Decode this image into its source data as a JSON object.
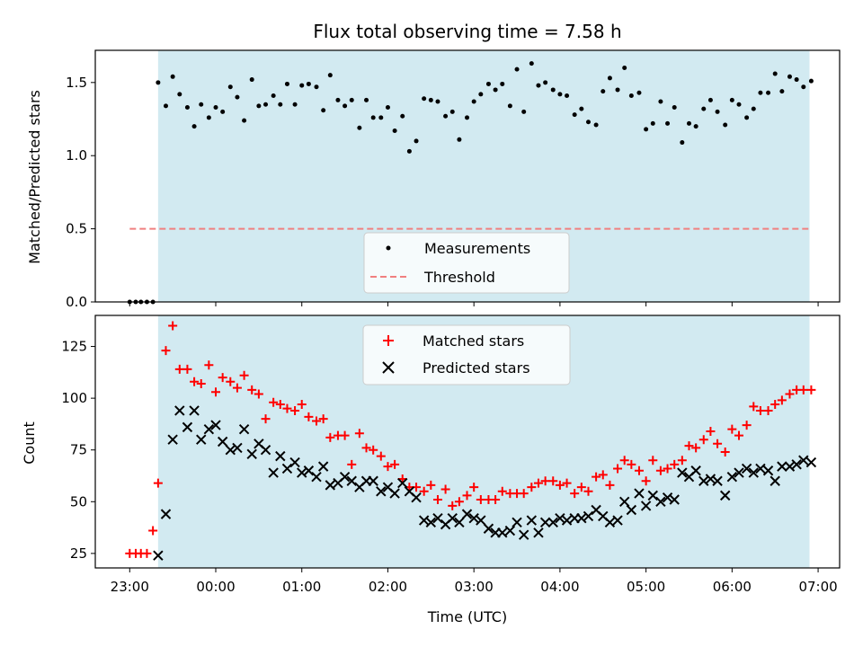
{
  "chart_data": {
    "title": "Flux total observing time = 7.58 h",
    "xlabel": "Time (UTC)",
    "x_ticks": [
      "23:00",
      "00:00",
      "01:00",
      "02:00",
      "03:00",
      "04:00",
      "05:00",
      "06:00",
      "07:00"
    ],
    "observing_window": {
      "start_h": 23.33,
      "end_h": 30.9,
      "color": "#add8e6"
    },
    "panels": [
      {
        "type": "scatter",
        "ylabel": "Matched/Predicted stars",
        "ylim": [
          0,
          1.72
        ],
        "yticks": [
          "0.0",
          "0.5",
          "1.0",
          "1.5"
        ],
        "threshold": 0.5,
        "legend": {
          "measurements": "Measurements",
          "threshold": "Threshold",
          "placement": "lower-center"
        },
        "series": [
          {
            "name": "Measurements",
            "color": "#000000",
            "x": [
              23.0,
              23.07,
              23.13,
              23.2,
              23.27,
              23.33,
              23.42,
              23.5,
              23.58,
              23.67,
              23.75,
              23.83,
              23.92,
              24.0,
              24.08,
              24.17,
              24.25,
              24.33,
              24.42,
              24.5,
              24.58,
              24.67,
              24.75,
              24.83,
              24.92,
              25.0,
              25.08,
              25.17,
              25.25,
              25.33,
              25.42,
              25.5,
              25.58,
              25.67,
              25.75,
              25.83,
              25.92,
              26.0,
              26.08,
              26.17,
              26.25,
              26.33,
              26.42,
              26.5,
              26.58,
              26.67,
              26.75,
              26.83,
              26.92,
              27.0,
              27.08,
              27.17,
              27.25,
              27.33,
              27.42,
              27.5,
              27.58,
              27.67,
              27.75,
              27.83,
              27.92,
              28.0,
              28.08,
              28.17,
              28.25,
              28.33,
              28.42,
              28.5,
              28.58,
              28.67,
              28.75,
              28.83,
              28.92,
              29.0,
              29.08,
              29.17,
              29.25,
              29.33,
              29.42,
              29.5,
              29.58,
              29.67,
              29.75,
              29.83,
              29.92,
              30.0,
              30.08,
              30.17,
              30.25,
              30.33,
              30.42,
              30.5,
              30.58,
              30.67,
              30.75,
              30.83,
              30.92
            ],
            "y": [
              0,
              0,
              0,
              0,
              0,
              1.5,
              1.34,
              1.54,
              1.42,
              1.33,
              1.2,
              1.35,
              1.26,
              1.33,
              1.3,
              1.47,
              1.4,
              1.24,
              1.52,
              1.34,
              1.35,
              1.41,
              1.35,
              1.49,
              1.35,
              1.48,
              1.49,
              1.47,
              1.31,
              1.55,
              1.38,
              1.34,
              1.38,
              1.19,
              1.38,
              1.26,
              1.26,
              1.33,
              1.17,
              1.27,
              1.03,
              1.1,
              1.39,
              1.38,
              1.37,
              1.27,
              1.3,
              1.11,
              1.26,
              1.37,
              1.42,
              1.49,
              1.45,
              1.49,
              1.34,
              1.59,
              1.3,
              1.63,
              1.48,
              1.5,
              1.45,
              1.42,
              1.41,
              1.28,
              1.32,
              1.23,
              1.21,
              1.44,
              1.53,
              1.45,
              1.6,
              1.41,
              1.43,
              1.18,
              1.22,
              1.37,
              1.22,
              1.33,
              1.09,
              1.22,
              1.2,
              1.32,
              1.38,
              1.3,
              1.21,
              1.38,
              1.35,
              1.26,
              1.32,
              1.43,
              1.43,
              1.56,
              1.44,
              1.54,
              1.52,
              1.47,
              1.51
            ]
          }
        ]
      },
      {
        "type": "scatter",
        "ylabel": "Count",
        "ylim": [
          18,
          140
        ],
        "yticks": [
          "25",
          "50",
          "75",
          "100",
          "125"
        ],
        "legend": {
          "matched": "Matched stars",
          "predicted": "Predicted stars",
          "placement": "upper-center"
        },
        "series": [
          {
            "name": "Matched stars",
            "color": "#ff0000",
            "x": [
              23.0,
              23.07,
              23.13,
              23.2,
              23.27,
              23.33,
              23.42,
              23.5,
              23.58,
              23.67,
              23.75,
              23.83,
              23.92,
              24.0,
              24.08,
              24.17,
              24.25,
              24.33,
              24.42,
              24.5,
              24.58,
              24.67,
              24.75,
              24.83,
              24.92,
              25.0,
              25.08,
              25.17,
              25.25,
              25.33,
              25.42,
              25.5,
              25.58,
              25.67,
              25.75,
              25.83,
              25.92,
              26.0,
              26.08,
              26.17,
              26.25,
              26.33,
              26.42,
              26.5,
              26.58,
              26.67,
              26.75,
              26.83,
              26.92,
              27.0,
              27.08,
              27.17,
              27.25,
              27.33,
              27.42,
              27.5,
              27.58,
              27.67,
              27.75,
              27.83,
              27.92,
              28.0,
              28.08,
              28.17,
              28.25,
              28.33,
              28.42,
              28.5,
              28.58,
              28.67,
              28.75,
              28.83,
              28.92,
              29.0,
              29.08,
              29.17,
              29.25,
              29.33,
              29.42,
              29.5,
              29.58,
              29.67,
              29.75,
              29.83,
              29.92,
              30.0,
              30.08,
              30.17,
              30.25,
              30.33,
              30.42,
              30.5,
              30.58,
              30.67,
              30.75,
              30.83,
              30.92
            ],
            "y": [
              25,
              25,
              25,
              25,
              36,
              59,
              123,
              135,
              114,
              114,
              108,
              107,
              116,
              103,
              110,
              108,
              105,
              111,
              104,
              102,
              90,
              98,
              97,
              95,
              94,
              97,
              91,
              89,
              90,
              81,
              82,
              82,
              68,
              83,
              76,
              75,
              72,
              67,
              68,
              61,
              57,
              57,
              55,
              58,
              51,
              56,
              48,
              50,
              53,
              57,
              51,
              51,
              51,
              55,
              54,
              54,
              54,
              57,
              59,
              60,
              60,
              58,
              59,
              54,
              57,
              55,
              62,
              63,
              58,
              66,
              70,
              68,
              65,
              60,
              70,
              65,
              66,
              68,
              70,
              77,
              76,
              80,
              84,
              78,
              74,
              85,
              82,
              87,
              96,
              94,
              94,
              97,
              99,
              102,
              104,
              104,
              104
            ]
          },
          {
            "name": "Predicted stars",
            "color": "#000000",
            "x": [
              23.33,
              23.42,
              23.5,
              23.58,
              23.67,
              23.75,
              23.83,
              23.92,
              24.0,
              24.08,
              24.17,
              24.25,
              24.33,
              24.42,
              24.5,
              24.58,
              24.67,
              24.75,
              24.83,
              24.92,
              25.0,
              25.08,
              25.17,
              25.25,
              25.33,
              25.42,
              25.5,
              25.58,
              25.67,
              25.75,
              25.83,
              25.92,
              26.0,
              26.08,
              26.17,
              26.25,
              26.33,
              26.42,
              26.5,
              26.58,
              26.67,
              26.75,
              26.83,
              26.92,
              27.0,
              27.08,
              27.17,
              27.25,
              27.33,
              27.42,
              27.5,
              27.58,
              27.67,
              27.75,
              27.83,
              27.92,
              28.0,
              28.08,
              28.17,
              28.25,
              28.33,
              28.42,
              28.5,
              28.58,
              28.67,
              28.75,
              28.83,
              28.92,
              29.0,
              29.08,
              29.17,
              29.25,
              29.33,
              29.42,
              29.5,
              29.58,
              29.67,
              29.75,
              29.83,
              29.92,
              30.0,
              30.08,
              30.17,
              30.25,
              30.33,
              30.42,
              30.5,
              30.58,
              30.67,
              30.75,
              30.83,
              30.92
            ],
            "y": [
              24,
              44,
              80,
              94,
              86,
              94,
              80,
              85,
              87,
              79,
              75,
              76,
              85,
              73,
              78,
              75,
              64,
              72,
              66,
              69,
              64,
              65,
              62,
              67,
              58,
              59,
              62,
              60,
              57,
              60,
              60,
              55,
              57,
              54,
              59,
              55,
              52,
              41,
              40,
              42,
              39,
              42,
              40,
              44,
              42,
              41,
              37,
              35,
              35,
              36,
              40,
              34,
              41,
              35,
              40,
              40,
              42,
              41,
              42,
              42,
              43,
              46,
              43,
              40,
              41,
              50,
              46,
              54,
              48,
              53,
              50,
              52,
              51,
              64,
              62,
              65,
              60,
              61,
              60,
              53,
              62,
              64,
              66,
              64,
              66,
              65,
              60,
              67,
              67,
              68,
              70,
              69
            ]
          }
        ]
      }
    ]
  }
}
